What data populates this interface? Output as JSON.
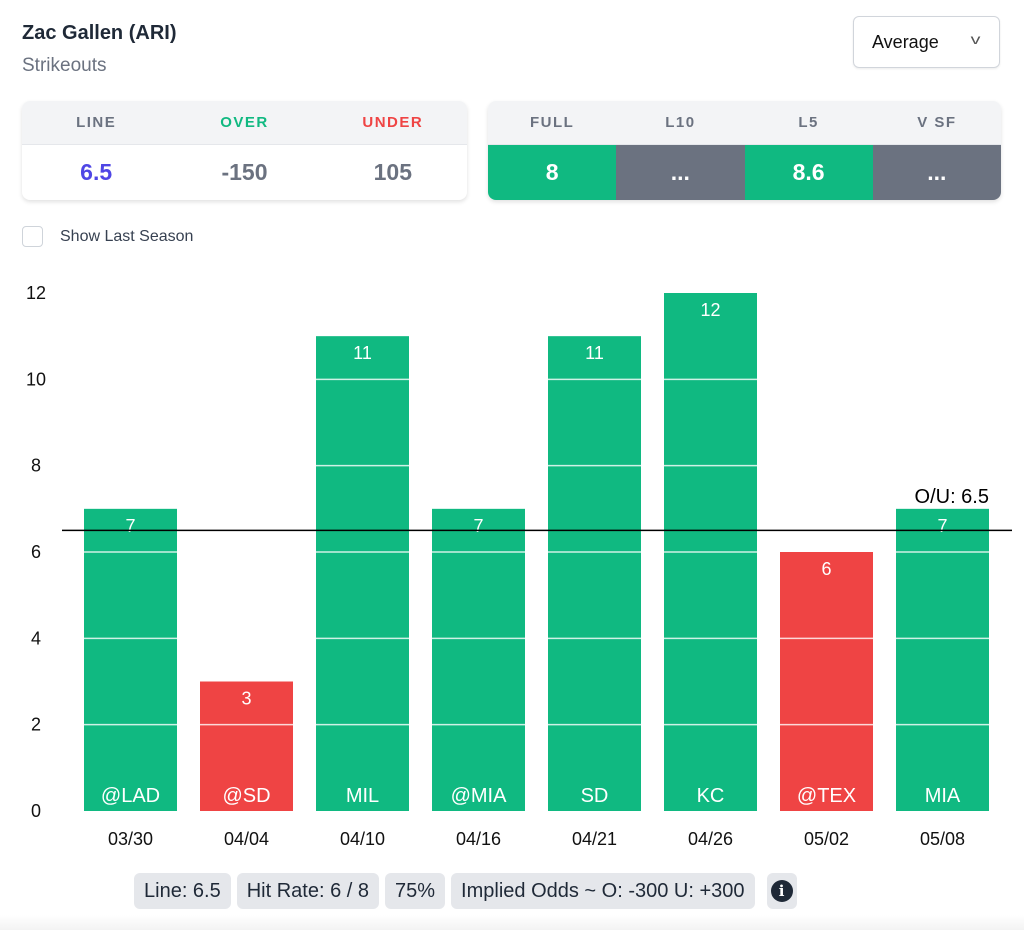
{
  "header": {
    "title": "Zac Gallen (ARI)",
    "subtitle": "Strikeouts"
  },
  "dropdown": {
    "selected": "Average",
    "icon": "chevron-down-icon"
  },
  "odds": {
    "line_label": "LINE",
    "over_label": "OVER",
    "under_label": "UNDER",
    "line": "6.5",
    "over": "-150",
    "under": "105",
    "colors": {
      "line": "#4f46e5",
      "over": "#10b981",
      "under": "#ef4444"
    }
  },
  "averages": [
    {
      "label": "FULL",
      "value": "8",
      "status": "green"
    },
    {
      "label": "L10",
      "value": "...",
      "status": "gray"
    },
    {
      "label": "L5",
      "value": "8.6",
      "status": "green"
    },
    {
      "label": "V SF",
      "value": "...",
      "status": "gray"
    }
  ],
  "checkbox": {
    "label": "Show Last Season",
    "checked": false
  },
  "chart_data": {
    "type": "bar",
    "ylim": [
      0,
      12
    ],
    "yticks": [
      0,
      2,
      4,
      6,
      8,
      10,
      12
    ],
    "categories": [
      "03/30",
      "04/04",
      "04/10",
      "04/16",
      "04/21",
      "04/26",
      "05/02",
      "05/08"
    ],
    "opponents": [
      "@LAD",
      "@SD",
      "MIL",
      "@MIA",
      "SD",
      "KC",
      "@TEX",
      "MIA"
    ],
    "values": [
      7,
      3,
      11,
      7,
      11,
      12,
      6,
      7
    ],
    "line": {
      "value": 6.5,
      "label": "O/U: 6.5"
    },
    "colors": {
      "over": "#10b981",
      "under": "#ef4444"
    }
  },
  "summary": {
    "line": "Line: 6.5",
    "hit_rate": "Hit Rate: 6 / 8",
    "pct": "75%",
    "implied": "Implied Odds ~ O: -300 U: +300",
    "info_icon": "info-icon"
  }
}
